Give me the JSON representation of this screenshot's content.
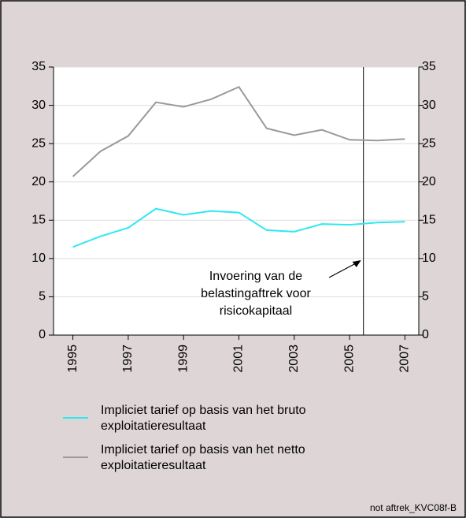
{
  "chart_data": {
    "type": "line",
    "x": [
      1995,
      1996,
      1997,
      1998,
      1999,
      2000,
      2001,
      2002,
      2003,
      2004,
      2005,
      2006,
      2007
    ],
    "series": [
      {
        "name": "Impliciet tarief op basis van het bruto exploitatieresultaat",
        "color": "#2ee8f2",
        "values": [
          11.5,
          12.9,
          14.0,
          16.5,
          15.7,
          16.2,
          16.0,
          13.7,
          13.5,
          14.5,
          14.4,
          14.7,
          14.8
        ]
      },
      {
        "name": "Impliciet tarief op basis van het netto exploitatieresultaat",
        "color": "#9a9a9a",
        "values": [
          20.7,
          24.0,
          26.0,
          30.4,
          29.8,
          30.8,
          32.4,
          27.0,
          26.1,
          26.8,
          25.5,
          25.4,
          25.6
        ]
      }
    ],
    "xlim": [
      1994.3,
      2007.5
    ],
    "xticks": [
      1995,
      1997,
      1999,
      2001,
      2003,
      2005,
      2007
    ],
    "ylim": [
      0,
      35
    ],
    "yticks": [
      0,
      5,
      10,
      15,
      20,
      25,
      30,
      35
    ],
    "y2lim": [
      0,
      35
    ],
    "y2ticks": [
      0,
      5,
      10,
      15,
      20,
      25,
      30,
      35
    ],
    "grid": true,
    "vline_x": 2005.5,
    "annotation": [
      "Invoering van de",
      "belastingaftrek voor",
      "risicokapitaal"
    ],
    "footnote": "not aftrek_KVC08f-B"
  }
}
